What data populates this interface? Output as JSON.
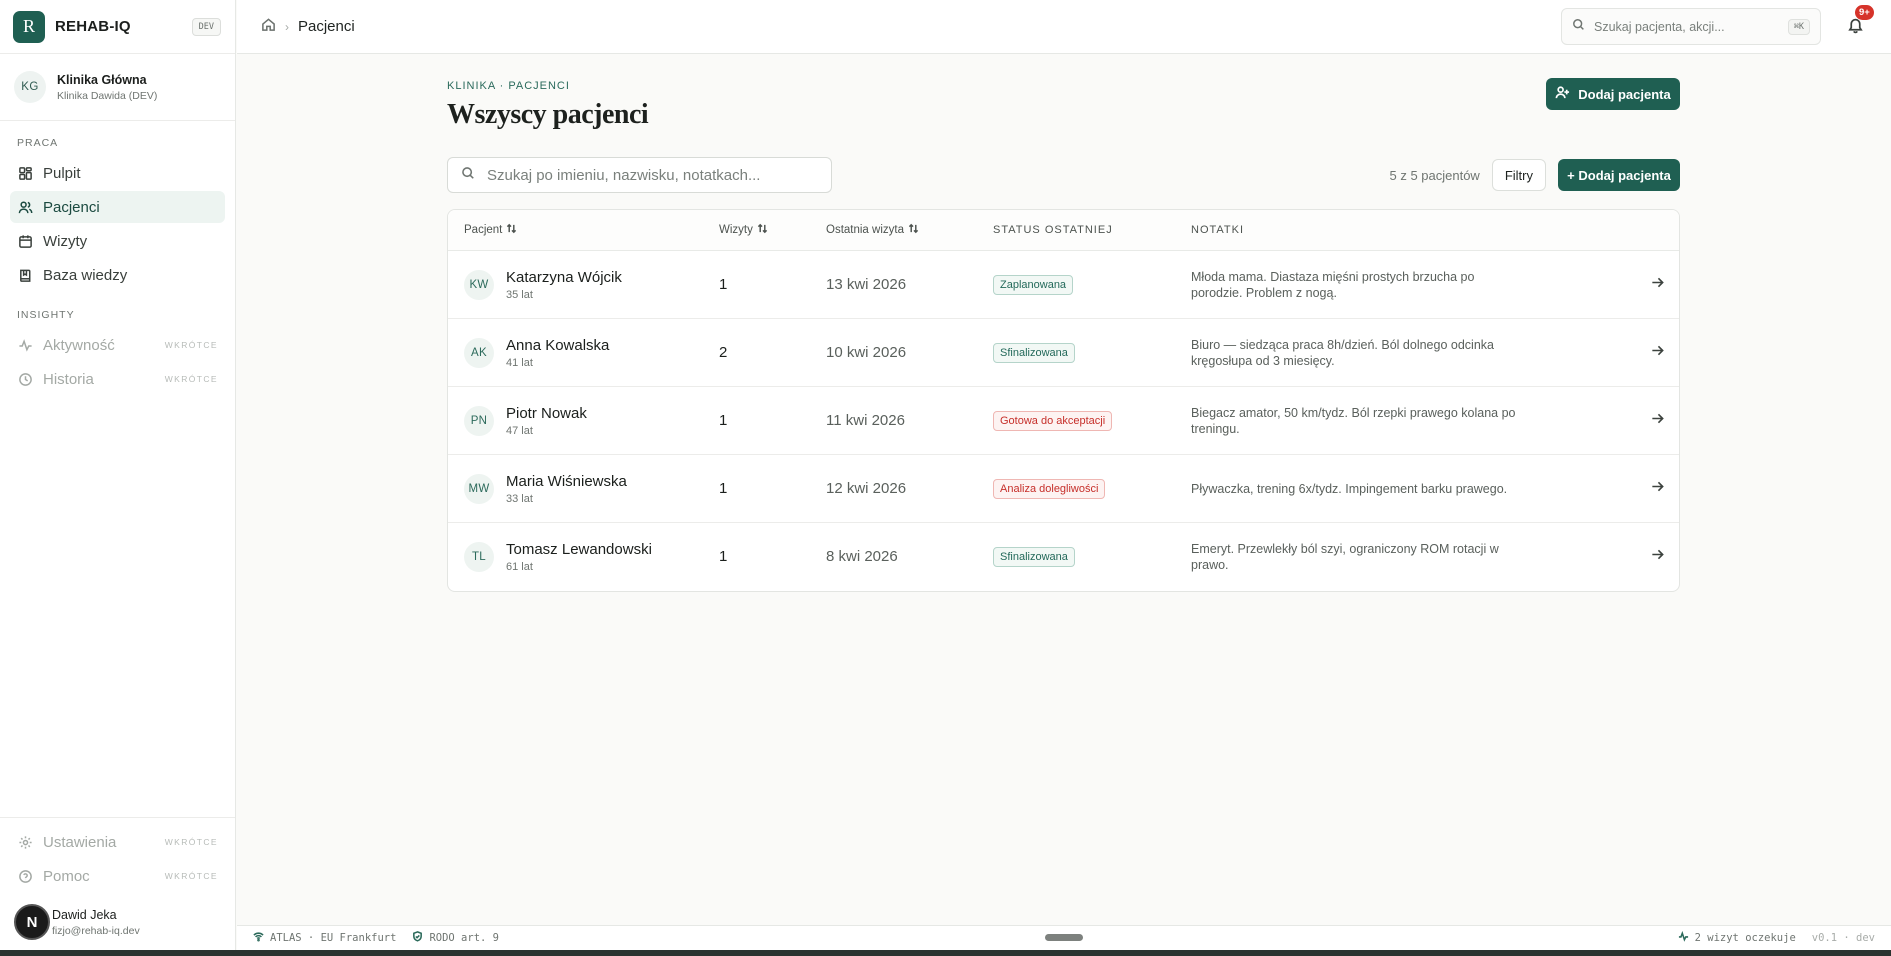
{
  "app": {
    "name": "REHAB-IQ",
    "logo_letter": "R",
    "env_badge": "DEV"
  },
  "clinic": {
    "initials": "KG",
    "name": "Klinika Główna",
    "subtitle": "Klinika Dawida (DEV)"
  },
  "sidebar": {
    "section_work": "PRACA",
    "work_items": [
      {
        "label": "Pulpit",
        "icon": "dashboard-icon"
      },
      {
        "label": "Pacjenci",
        "icon": "users-icon",
        "active": true
      },
      {
        "label": "Wizyty",
        "icon": "calendar-icon"
      },
      {
        "label": "Baza wiedzy",
        "icon": "book-icon"
      }
    ],
    "section_insights": "INSIGHTY",
    "insight_items": [
      {
        "label": "Aktywność",
        "soon": "WKRÓTCE",
        "icon": "activity-icon"
      },
      {
        "label": "Historia",
        "soon": "WKRÓTCE",
        "icon": "history-icon"
      }
    ],
    "bottom_items": [
      {
        "label": "Ustawienia",
        "soon": "WKRÓTCE",
        "icon": "gear-icon"
      },
      {
        "label": "Pomoc",
        "soon": "WKRÓTCE",
        "icon": "help-icon"
      }
    ]
  },
  "user": {
    "initial": "N",
    "name": "Dawid Jeka",
    "email": "fizjo@rehab-iq.dev"
  },
  "topbar": {
    "breadcrumb_current": "Pacjenci",
    "search_placeholder": "Szukaj pacjenta, akcji...",
    "shortcut": "⌘K",
    "notifications_badge": "9+"
  },
  "page": {
    "eyebrow": "KLINIKA · PACJENCI",
    "title": "Wszyscy pacjenci",
    "add_button": "Dodaj pacjenta",
    "search_placeholder": "Szukaj po imieniu, nazwisku, notatkach...",
    "count_text": "5 z 5 pacjentów",
    "filters_button": "Filtry",
    "add_button_secondary": "+ Dodaj pacjenta"
  },
  "table": {
    "headers": {
      "patient": "Pacjent",
      "visits": "Wizyty",
      "last_visit": "Ostatnia wizyta",
      "status": "STATUS OSTATNIEJ",
      "notes": "NOTATKI"
    },
    "rows": [
      {
        "initials": "KW",
        "name": "Katarzyna Wójcik",
        "age": "35 lat",
        "visits": "1",
        "last_visit": "13 kwi 2026",
        "status": "Zaplanowana",
        "status_color": "#23695a",
        "notes": "Młoda mama. Diastaza mięśni prostych brzucha po porodzie. Problem z nogą."
      },
      {
        "initials": "AK",
        "name": "Anna Kowalska",
        "age": "41 lat",
        "visits": "2",
        "last_visit": "10 kwi 2026",
        "status": "Sfinalizowana",
        "status_color": "#23695a",
        "notes": "Biuro — siedząca praca 8h/dzień. Ból dolnego odcinka kręgosłupa od 3 miesięcy."
      },
      {
        "initials": "PN",
        "name": "Piotr Nowak",
        "age": "47 lat",
        "visits": "1",
        "last_visit": "11 kwi 2026",
        "status": "Gotowa do akceptacji",
        "status_color": "#c62f2a",
        "notes": "Biegacz amator, 50 km/tydz. Ból rzepki prawego kolana po treningu."
      },
      {
        "initials": "MW",
        "name": "Maria Wiśniewska",
        "age": "33 lat",
        "visits": "1",
        "last_visit": "12 kwi 2026",
        "status": "Analiza dolegliwości",
        "status_color": "#c62f2a",
        "notes": "Pływaczka, trening 6x/tydz. Impingement barku prawego."
      },
      {
        "initials": "TL",
        "name": "Tomasz Lewandowski",
        "age": "61 lat",
        "visits": "1",
        "last_visit": "8 kwi 2026",
        "status": "Sfinalizowana",
        "status_color": "#23695a",
        "notes": "Emeryt. Przewlekły ból szyi, ograniczony ROM rotacji w prawo."
      }
    ]
  },
  "footer": {
    "region": "ATLAS · EU Frankfurt",
    "compliance": "RODO art. 9",
    "pending": "2 wizyt oczekuje",
    "version": "v0.1 · dev"
  }
}
